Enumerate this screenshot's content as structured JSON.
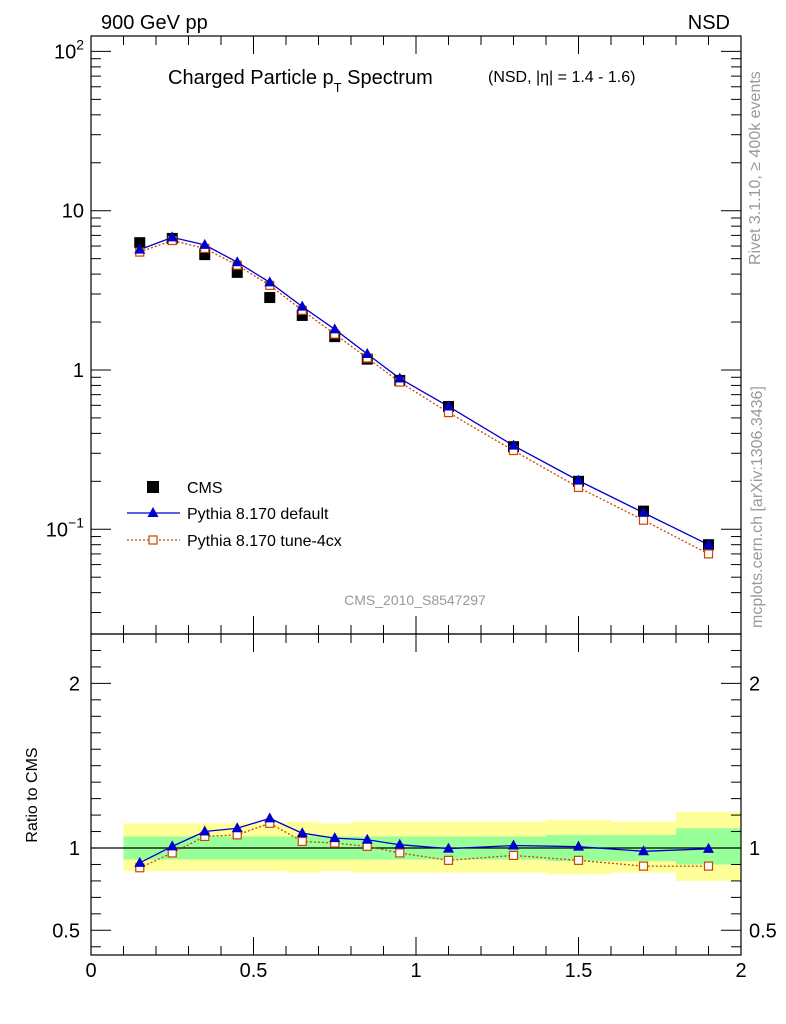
{
  "header": {
    "left": "900 GeV pp",
    "right": "NSD"
  },
  "side_labels": {
    "rivet": "Rivet 3.1.10, ≥ 400k events",
    "mcplots": "mcplots.cern.ch [arXiv:1306.3436]"
  },
  "colors": {
    "cms": "#000000",
    "default": "#0000cc",
    "tune": "#cc4400",
    "band_inner": "#99ff99",
    "band_outer": "#ffff99",
    "watermark": "#999999"
  },
  "chart_data": [
    {
      "type": "scatter",
      "scale": "log",
      "title": {
        "main": "Charged Particle p",
        "sub": "T",
        "tail": " Spectrum",
        "extra": "(NSD, |η| = 1.4 - 1.6)"
      },
      "watermark": "CMS_2010_S8547297",
      "xlim": [
        0,
        2
      ],
      "ylim": [
        0.022,
        125
      ],
      "y_ticks": [
        {
          "value": 100,
          "mantissa": "10",
          "exp": "2"
        },
        {
          "value": 10,
          "mantissa": "10",
          "exp": ""
        },
        {
          "value": 1,
          "mantissa": "1",
          "exp": ""
        },
        {
          "value": 0.1,
          "mantissa": "10",
          "exp": "−1"
        }
      ],
      "legend": [
        {
          "key": "cms",
          "label": "CMS"
        },
        {
          "key": "default",
          "label": "Pythia 8.170 default"
        },
        {
          "key": "tune",
          "label": "Pythia 8.170 tune-4cx"
        }
      ],
      "x": [
        0.15,
        0.25,
        0.35,
        0.45,
        0.55,
        0.65,
        0.75,
        0.85,
        0.95,
        1.1,
        1.3,
        1.5,
        1.7,
        1.9
      ],
      "series": [
        {
          "name": "CMS",
          "key": "cms",
          "values": [
            6.3,
            6.7,
            5.3,
            4.1,
            2.85,
            2.2,
            1.62,
            1.17,
            0.86,
            0.59,
            0.33,
            0.2,
            0.13,
            0.08
          ]
        },
        {
          "name": "Pythia 8.170 default",
          "key": "default",
          "values": [
            5.7,
            6.8,
            6.1,
            4.75,
            3.55,
            2.5,
            1.8,
            1.26,
            0.885,
            0.59,
            0.335,
            0.202,
            0.127,
            0.08
          ]
        },
        {
          "name": "Pythia 8.170 tune-4cx",
          "key": "tune",
          "values": [
            5.5,
            6.5,
            5.8,
            4.55,
            3.4,
            2.37,
            1.68,
            1.19,
            0.84,
            0.54,
            0.312,
            0.183,
            0.114,
            0.07
          ]
        }
      ]
    },
    {
      "type": "scatter",
      "ylabel": "Ratio to CMS",
      "xlim": [
        0,
        2
      ],
      "ylim": [
        0.35,
        2.3
      ],
      "x_ticks": [
        "0",
        "0.5",
        "1",
        "1.5",
        "2"
      ],
      "x_tick_values": [
        0,
        0.5,
        1,
        1.5,
        2
      ],
      "y_ticks": [
        "0.5",
        "1",
        "2"
      ],
      "y_tick_values": [
        0.5,
        1,
        2
      ],
      "bins": [
        {
          "lo": 0.1,
          "hi": 0.2,
          "inner": [
            0.93,
            1.07
          ],
          "outer": [
            0.86,
            1.15
          ]
        },
        {
          "lo": 0.2,
          "hi": 0.3,
          "inner": [
            0.93,
            1.07
          ],
          "outer": [
            0.86,
            1.15
          ]
        },
        {
          "lo": 0.3,
          "hi": 0.4,
          "inner": [
            0.93,
            1.07
          ],
          "outer": [
            0.86,
            1.15
          ]
        },
        {
          "lo": 0.4,
          "hi": 0.5,
          "inner": [
            0.93,
            1.07
          ],
          "outer": [
            0.86,
            1.15
          ]
        },
        {
          "lo": 0.5,
          "hi": 0.6,
          "inner": [
            0.93,
            1.07
          ],
          "outer": [
            0.86,
            1.15
          ]
        },
        {
          "lo": 0.6,
          "hi": 0.7,
          "inner": [
            0.93,
            1.07
          ],
          "outer": [
            0.85,
            1.16
          ]
        },
        {
          "lo": 0.7,
          "hi": 0.8,
          "inner": [
            0.93,
            1.07
          ],
          "outer": [
            0.86,
            1.15
          ]
        },
        {
          "lo": 0.8,
          "hi": 0.9,
          "inner": [
            0.93,
            1.07
          ],
          "outer": [
            0.85,
            1.16
          ]
        },
        {
          "lo": 0.9,
          "hi": 1.0,
          "inner": [
            0.93,
            1.07
          ],
          "outer": [
            0.85,
            1.16
          ]
        },
        {
          "lo": 1.0,
          "hi": 1.2,
          "inner": [
            0.93,
            1.07
          ],
          "outer": [
            0.85,
            1.16
          ]
        },
        {
          "lo": 1.2,
          "hi": 1.4,
          "inner": [
            0.93,
            1.07
          ],
          "outer": [
            0.85,
            1.16
          ]
        },
        {
          "lo": 1.4,
          "hi": 1.6,
          "inner": [
            0.92,
            1.08
          ],
          "outer": [
            0.84,
            1.17
          ]
        },
        {
          "lo": 1.6,
          "hi": 1.8,
          "inner": [
            0.92,
            1.08
          ],
          "outer": [
            0.85,
            1.16
          ]
        },
        {
          "lo": 1.8,
          "hi": 2.0,
          "inner": [
            0.9,
            1.12
          ],
          "outer": [
            0.8,
            1.22
          ]
        }
      ],
      "x": [
        0.15,
        0.25,
        0.35,
        0.45,
        0.55,
        0.65,
        0.75,
        0.85,
        0.95,
        1.1,
        1.3,
        1.5,
        1.7,
        1.9
      ],
      "series": [
        {
          "name": "Pythia 8.170 default",
          "key": "default",
          "values": [
            0.91,
            1.01,
            1.1,
            1.12,
            1.18,
            1.09,
            1.06,
            1.05,
            1.02,
            0.996,
            1.015,
            1.008,
            0.98,
            0.995
          ]
        },
        {
          "name": "Pythia 8.170 tune-4cx",
          "key": "tune",
          "values": [
            0.88,
            0.97,
            1.07,
            1.08,
            1.15,
            1.04,
            1.03,
            1.01,
            0.97,
            0.925,
            0.955,
            0.925,
            0.89,
            0.89
          ]
        }
      ]
    }
  ]
}
